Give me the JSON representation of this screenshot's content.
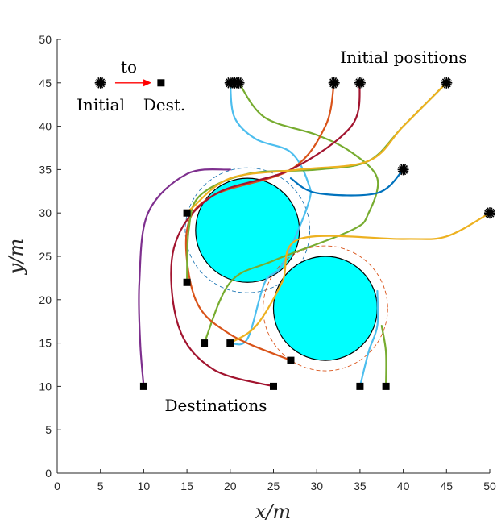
{
  "chart_data": {
    "type": "scatter",
    "title": "",
    "xlabel": "x/m",
    "ylabel": "y/m",
    "xlim": [
      0,
      50
    ],
    "ylim": [
      0,
      50
    ],
    "xticks": [
      0,
      5,
      10,
      15,
      20,
      25,
      30,
      35,
      40,
      45,
      50
    ],
    "yticks": [
      0,
      5,
      10,
      15,
      20,
      25,
      30,
      35,
      40,
      45,
      50
    ],
    "grid": false,
    "obstacles": [
      {
        "name": "obstacle-1",
        "center": [
          22,
          28
        ],
        "radius": 6,
        "safety_radius": 7.2,
        "safety_color": "#1f77b4"
      },
      {
        "name": "obstacle-2",
        "center": [
          31,
          19
        ],
        "radius": 6,
        "safety_radius": 7.2,
        "safety_color": "#d95319"
      }
    ],
    "obstacle_fill": "#00ffff",
    "initial_positions": [
      [
        5,
        45
      ],
      [
        20,
        45
      ],
      [
        20.5,
        45
      ],
      [
        21,
        45
      ],
      [
        32,
        45
      ],
      [
        35,
        45
      ],
      [
        45,
        45
      ],
      [
        40,
        35
      ],
      [
        50,
        30
      ]
    ],
    "destinations": [
      [
        12,
        45
      ],
      [
        15,
        30
      ],
      [
        15,
        22
      ],
      [
        17,
        15
      ],
      [
        20,
        15
      ],
      [
        10,
        10
      ],
      [
        25,
        10
      ],
      [
        27,
        13
      ],
      [
        35,
        10
      ],
      [
        38,
        10
      ]
    ],
    "legend": {
      "initial_label": "Initial",
      "dest_label": "Dest.",
      "arrow_label": "to",
      "arrow_color": "#ff0000"
    },
    "annotations": [
      {
        "text": "Initial positions",
        "at": [
          40,
          47
        ]
      },
      {
        "text": "Destinations",
        "at": [
          24,
          8
        ]
      }
    ],
    "series": [
      {
        "name": "traj-purple",
        "color": "#7e2f8e",
        "points": [
          [
            20,
            35
          ],
          [
            15,
            34.5
          ],
          [
            10.5,
            30
          ],
          [
            9.5,
            22
          ],
          [
            9.6,
            15
          ],
          [
            10,
            10
          ]
        ]
      },
      {
        "name": "traj-skyblue-1",
        "color": "#4dbeee",
        "points": [
          [
            20,
            45
          ],
          [
            20.5,
            41
          ],
          [
            23,
            38.5
          ],
          [
            27,
            37
          ],
          [
            29,
            33.5
          ],
          [
            29,
            31
          ],
          [
            26,
            24
          ],
          [
            24,
            22
          ],
          [
            22,
            15.5
          ],
          [
            20,
            15
          ]
        ]
      },
      {
        "name": "traj-green-1",
        "color": "#77ac30",
        "points": [
          [
            21,
            45
          ],
          [
            24,
            41
          ],
          [
            30,
            39
          ],
          [
            34,
            37
          ],
          [
            37,
            34
          ],
          [
            36,
            30
          ],
          [
            34,
            28
          ],
          [
            25,
            24.5
          ],
          [
            20,
            22
          ],
          [
            17,
            15
          ]
        ]
      },
      {
        "name": "traj-orange-1",
        "color": "#d95319",
        "points": [
          [
            32,
            45
          ],
          [
            31,
            40
          ],
          [
            27,
            35
          ],
          [
            18,
            32
          ],
          [
            15,
            28
          ],
          [
            16,
            20
          ],
          [
            20,
            16
          ],
          [
            27,
            13
          ]
        ]
      },
      {
        "name": "traj-darkred",
        "color": "#a2142f",
        "points": [
          [
            35,
            45
          ],
          [
            34,
            40
          ],
          [
            27,
            35
          ],
          [
            18,
            32
          ],
          [
            13.5,
            26
          ],
          [
            14,
            17
          ],
          [
            18,
            12
          ],
          [
            25,
            10
          ]
        ]
      },
      {
        "name": "traj-green-2",
        "color": "#77ac30",
        "points": [
          [
            45,
            45
          ],
          [
            40,
            40
          ],
          [
            36,
            36
          ],
          [
            30,
            35
          ],
          [
            22,
            34.5
          ],
          [
            16.5,
            32
          ],
          [
            15.2,
            28
          ],
          [
            15,
            22
          ]
        ]
      },
      {
        "name": "traj-yellow-1",
        "color": "#edb120",
        "points": [
          [
            45,
            45
          ],
          [
            40,
            40
          ],
          [
            36,
            36
          ],
          [
            28,
            35
          ],
          [
            20,
            34
          ],
          [
            15.5,
            30.5
          ],
          [
            15,
            30
          ]
        ]
      },
      {
        "name": "traj-blue",
        "color": "#0072bd",
        "points": [
          [
            40,
            35
          ],
          [
            37,
            32.3
          ],
          [
            30,
            32.3
          ],
          [
            27,
            34
          ]
        ]
      },
      {
        "name": "traj-yellow-2",
        "color": "#edb120",
        "points": [
          [
            50,
            30
          ],
          [
            45,
            27.3
          ],
          [
            40,
            27
          ],
          [
            28,
            27
          ],
          [
            26,
            22
          ],
          [
            23,
            17
          ],
          [
            20,
            15
          ]
        ]
      },
      {
        "name": "traj-skyblue-2",
        "color": "#4dbeee",
        "points": [
          [
            37,
            21
          ],
          [
            37,
            17
          ],
          [
            36,
            14
          ],
          [
            35,
            10
          ]
        ]
      },
      {
        "name": "traj-green-3",
        "color": "#77ac30",
        "points": [
          [
            37.5,
            17
          ],
          [
            38,
            14
          ],
          [
            38,
            10
          ]
        ]
      }
    ]
  }
}
